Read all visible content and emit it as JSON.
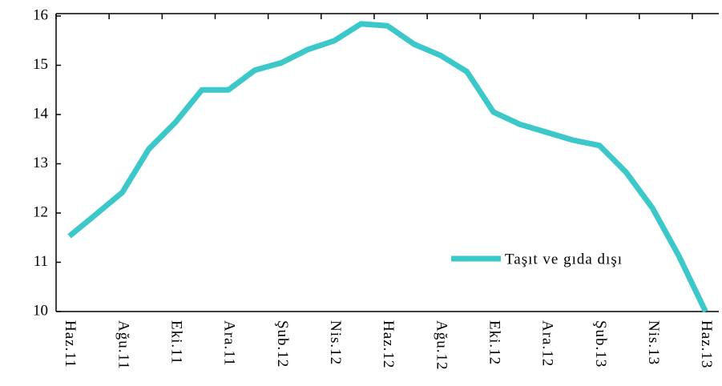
{
  "chart_data": {
    "type": "line",
    "categories": [
      "Haz.11",
      null,
      "Ağu.11",
      null,
      "Eki.11",
      null,
      "Ara.11",
      null,
      "Şub.12",
      null,
      "Nis.12",
      null,
      "Haz.12",
      null,
      "Ağu.12",
      null,
      "Eki.12",
      null,
      "Ara.12",
      null,
      "Şub.13",
      null,
      "Nis.13",
      null,
      "Haz.13"
    ],
    "series": [
      {
        "name": "Taşıt ve gıda dışı",
        "color": "#3cc8c8",
        "values": [
          11.53,
          11.97,
          12.42,
          13.3,
          13.84,
          14.5,
          14.5,
          14.9,
          15.05,
          15.32,
          15.5,
          15.84,
          15.8,
          15.43,
          15.2,
          14.87,
          14.05,
          13.8,
          13.64,
          13.48,
          13.37,
          12.83,
          12.1,
          11.12,
          10.0
        ]
      }
    ],
    "ylim": [
      10,
      16
    ],
    "yticks": [
      10,
      11,
      12,
      13,
      14,
      15,
      16
    ]
  }
}
